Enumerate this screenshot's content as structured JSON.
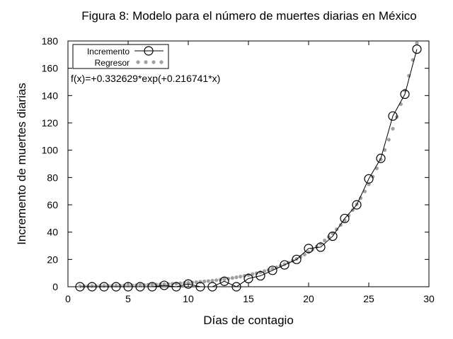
{
  "chart_data": {
    "type": "line",
    "title": "Figura 8: Modelo para el número de muertes diarias en México",
    "xlabel": "Días de contagio",
    "ylabel": "Incremento de muertes diarias",
    "xlim": [
      0,
      30
    ],
    "ylim": [
      0,
      180
    ],
    "xticks": [
      0,
      5,
      10,
      15,
      20,
      25,
      30
    ],
    "yticks": [
      0,
      20,
      40,
      60,
      80,
      100,
      120,
      140,
      160,
      180
    ],
    "grid": false,
    "legend_position": "top-left",
    "annotation": "f(x)=+0.332629*exp(+0.216741*x)",
    "series": [
      {
        "name": "Incremento",
        "style": "line-with-open-circles",
        "color": "#000000",
        "x": [
          1,
          2,
          3,
          4,
          5,
          6,
          7,
          8,
          9,
          10,
          11,
          12,
          13,
          14,
          15,
          16,
          17,
          18,
          19,
          20,
          21,
          22,
          23,
          24,
          25,
          26,
          27,
          28,
          29
        ],
        "y": [
          0,
          0,
          0,
          0,
          0,
          0,
          0,
          1,
          0,
          2,
          0,
          0,
          4,
          0,
          6,
          8,
          12,
          16,
          20,
          28,
          29,
          37,
          50,
          60,
          79,
          94,
          125,
          141,
          174
        ]
      },
      {
        "name": "Regresor",
        "style": "dotted",
        "color": "#a0a0a0",
        "model": {
          "a": 0.332629,
          "b": 0.216741
        },
        "x_range": [
          1,
          29
        ]
      }
    ]
  }
}
